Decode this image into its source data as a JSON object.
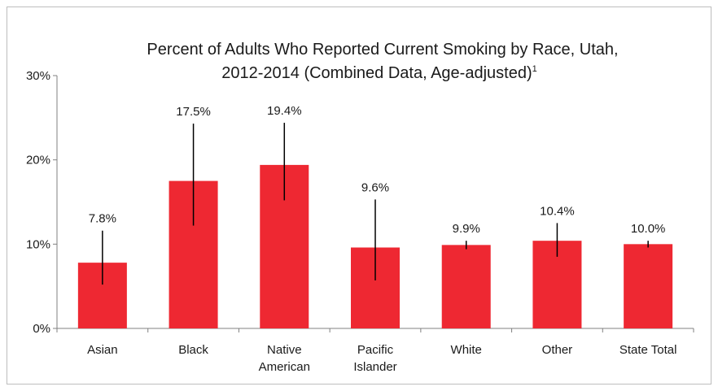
{
  "chart_data": {
    "type": "bar",
    "title_line1": "Percent of Adults Who Reported Current Smoking by Race, Utah,",
    "title_line2": "2012-2014 (Combined Data, Age-adjusted)",
    "title_superscript": "1",
    "categories": [
      [
        "Asian"
      ],
      [
        "Black"
      ],
      [
        "Native",
        "American"
      ],
      [
        "Pacific",
        "Islander"
      ],
      [
        "White"
      ],
      [
        "Other"
      ],
      [
        "State Total"
      ]
    ],
    "values": [
      7.8,
      17.5,
      19.4,
      9.6,
      9.9,
      10.4,
      10.0
    ],
    "data_labels": [
      "7.8%",
      "17.5%",
      "19.4%",
      "9.6%",
      "9.9%",
      "10.4%",
      "10.0%"
    ],
    "error_low": [
      5.2,
      12.2,
      15.2,
      5.7,
      9.4,
      8.5,
      9.6
    ],
    "error_high": [
      11.6,
      24.3,
      24.4,
      15.3,
      10.4,
      12.5,
      10.4
    ],
    "ylim": [
      0,
      30
    ],
    "yticks": [
      0,
      10,
      20,
      30
    ],
    "ytick_labels": [
      "0%",
      "10%",
      "20%",
      "30%"
    ],
    "xlabel": "",
    "ylabel": "",
    "grid": false,
    "legend": "none",
    "colors": {
      "bar": "#ee2832",
      "error_bar": "#000000",
      "axis": "#808080"
    }
  }
}
